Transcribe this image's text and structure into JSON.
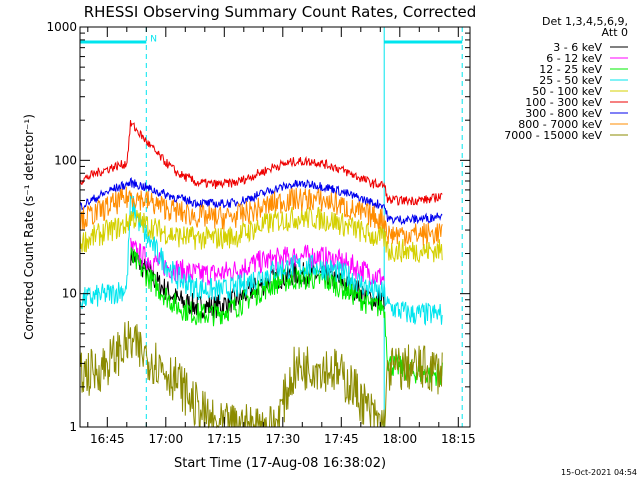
{
  "chart_data": {
    "type": "line",
    "title": "RHESSI Observing Summary Count Rates, Corrected",
    "xlabel": "Start Time (17-Aug-08 16:38:02)",
    "ylabel": "Corrected Count Rate (s⁻¹ detector⁻¹)",
    "yscale": "log",
    "ylim": [
      1,
      1000
    ],
    "xlim_minutes": [
      0,
      100
    ],
    "xticks": [
      {
        "label": "16:45",
        "minutes": 7
      },
      {
        "label": "17:00",
        "minutes": 22
      },
      {
        "label": "17:15",
        "minutes": 37
      },
      {
        "label": "17:30",
        "minutes": 52
      },
      {
        "label": "17:45",
        "minutes": 67
      },
      {
        "label": "18:00",
        "minutes": 82
      },
      {
        "label": "18:15",
        "minutes": 97
      }
    ],
    "yticks": [
      {
        "label": "1",
        "value": 1
      },
      {
        "label": "10",
        "value": 10
      },
      {
        "label": "100",
        "value": 100
      },
      {
        "label": "1000",
        "value": 1000
      }
    ],
    "legend_header": [
      "Det 1,3,4,5,6,9,",
      "Att 0"
    ],
    "legend_position": "top-right, outside plot",
    "timestamp": "15-Oct-2021 04:54",
    "annotations": [
      {
        "label": "N",
        "minutes": 17,
        "value": 750
      }
    ],
    "markers": {
      "night_bars": [
        {
          "start_minutes": 0,
          "end_minutes": 17
        },
        {
          "start_minutes": 78,
          "end_minutes": 98
        }
      ],
      "dashed_lines_minutes": [
        17,
        98
      ],
      "solid_lines_minutes": [
        0,
        78
      ],
      "color": "#00e5ee"
    },
    "series_x_minutes": [
      0,
      4,
      8,
      12,
      13,
      16,
      20,
      25,
      30,
      35,
      40,
      45,
      50,
      55,
      60,
      65,
      70,
      75,
      78,
      79,
      85,
      90,
      93
    ],
    "series": [
      {
        "name": "3 - 6 keV",
        "color": "#000000",
        "values": [
          null,
          null,
          null,
          null,
          20,
          16,
          12,
          9,
          8,
          8,
          9,
          11,
          13,
          14,
          14,
          13,
          11,
          9,
          9,
          null,
          null,
          null,
          null
        ]
      },
      {
        "name": "6 - 12 keV",
        "color": "#ff00ff",
        "values": [
          null,
          null,
          null,
          null,
          22,
          19,
          17,
          15,
          14,
          14,
          15,
          17,
          18,
          19,
          19,
          18,
          16,
          14,
          13,
          null,
          null,
          null,
          null
        ]
      },
      {
        "name": "12 - 25 keV",
        "color": "#00ee00",
        "values": [
          null,
          null,
          null,
          null,
          19,
          15,
          11,
          8,
          7,
          7,
          8,
          10,
          12,
          13,
          13,
          12,
          10,
          8,
          8,
          3,
          2.6,
          2.5,
          2.5
        ]
      },
      {
        "name": "25 - 50 keV",
        "color": "#00e5ee",
        "values": [
          9,
          9.5,
          10,
          11,
          50,
          30,
          20,
          13,
          11,
          10.5,
          11,
          13,
          15,
          16,
          16,
          15,
          13,
          10.5,
          10,
          8,
          7,
          7,
          7
        ]
      },
      {
        "name": "50 - 100 keV",
        "color": "#d4d000",
        "values": [
          24,
          27,
          30,
          33,
          38,
          34,
          30,
          27,
          26,
          26,
          27,
          31,
          35,
          37,
          37,
          35,
          31,
          27,
          26,
          21,
          21,
          21,
          21
        ]
      },
      {
        "name": "100 - 300 keV",
        "color": "#ee0000",
        "values": [
          70,
          80,
          88,
          95,
          190,
          150,
          110,
          80,
          68,
          66,
          68,
          78,
          90,
          98,
          98,
          90,
          78,
          67,
          65,
          50,
          50,
          51,
          55
        ]
      },
      {
        "name": "300 - 800 keV",
        "color": "#0000ee",
        "values": [
          45,
          52,
          60,
          66,
          68,
          64,
          58,
          52,
          48,
          47,
          48,
          54,
          61,
          66,
          66,
          61,
          54,
          48,
          46,
          36,
          36,
          37,
          40
        ]
      },
      {
        "name": "800 - 7000 keV",
        "color": "#ff8c00",
        "values": [
          36,
          40,
          46,
          52,
          55,
          51,
          46,
          41,
          38,
          37,
          38,
          42,
          48,
          51,
          51,
          48,
          42,
          38,
          36,
          28,
          28,
          28,
          29
        ]
      },
      {
        "name": "7000 - 15000 keV",
        "color": "#8b8b00",
        "values": [
          2.5,
          2.6,
          3.2,
          4.2,
          4.3,
          3.6,
          3,
          2.2,
          1.4,
          1,
          1,
          1,
          1,
          2.7,
          2.9,
          2.7,
          2,
          1.2,
          1,
          2.7,
          2.8,
          2.7,
          2.6
        ]
      }
    ]
  }
}
